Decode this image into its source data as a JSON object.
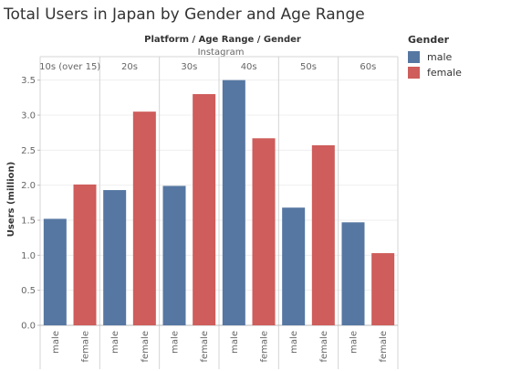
{
  "title": "Total Users in Japan by Gender and Age Range",
  "legend": {
    "title": "Gender",
    "items": [
      {
        "label": "male",
        "color": "#5677a2"
      },
      {
        "label": "female",
        "color": "#ce5d5b"
      }
    ]
  },
  "chart_data": {
    "type": "bar",
    "header": "Platform  /  Age Range  /  Gender",
    "platform": "Instagram",
    "ylabel": "Users (million)",
    "ylim": [
      0,
      3.6
    ],
    "yticks": [
      0.0,
      0.5,
      1.0,
      1.5,
      2.0,
      2.5,
      3.0,
      3.5
    ],
    "ytick_labels": [
      "0.0",
      "0.5",
      "1.0",
      "1.5",
      "2.0",
      "2.5",
      "3.0",
      "3.5"
    ],
    "grid": true,
    "groups": [
      {
        "label": "10s (over 15)",
        "bars": [
          {
            "gender": "male",
            "value": 1.52
          },
          {
            "gender": "female",
            "value": 2.01
          }
        ]
      },
      {
        "label": "20s",
        "bars": [
          {
            "gender": "male",
            "value": 1.93
          },
          {
            "gender": "female",
            "value": 3.05
          }
        ]
      },
      {
        "label": "30s",
        "bars": [
          {
            "gender": "male",
            "value": 1.99
          },
          {
            "gender": "female",
            "value": 3.3
          }
        ]
      },
      {
        "label": "40s",
        "bars": [
          {
            "gender": "male",
            "value": 3.5
          },
          {
            "gender": "female",
            "value": 2.67
          }
        ]
      },
      {
        "label": "50s",
        "bars": [
          {
            "gender": "male",
            "value": 1.68
          },
          {
            "gender": "female",
            "value": 2.57
          }
        ]
      },
      {
        "label": "60s",
        "bars": [
          {
            "gender": "male",
            "value": 1.47
          },
          {
            "gender": "female",
            "value": 1.03
          }
        ]
      }
    ],
    "colors": {
      "male": "#5677a2",
      "female": "#ce5d5b"
    }
  }
}
